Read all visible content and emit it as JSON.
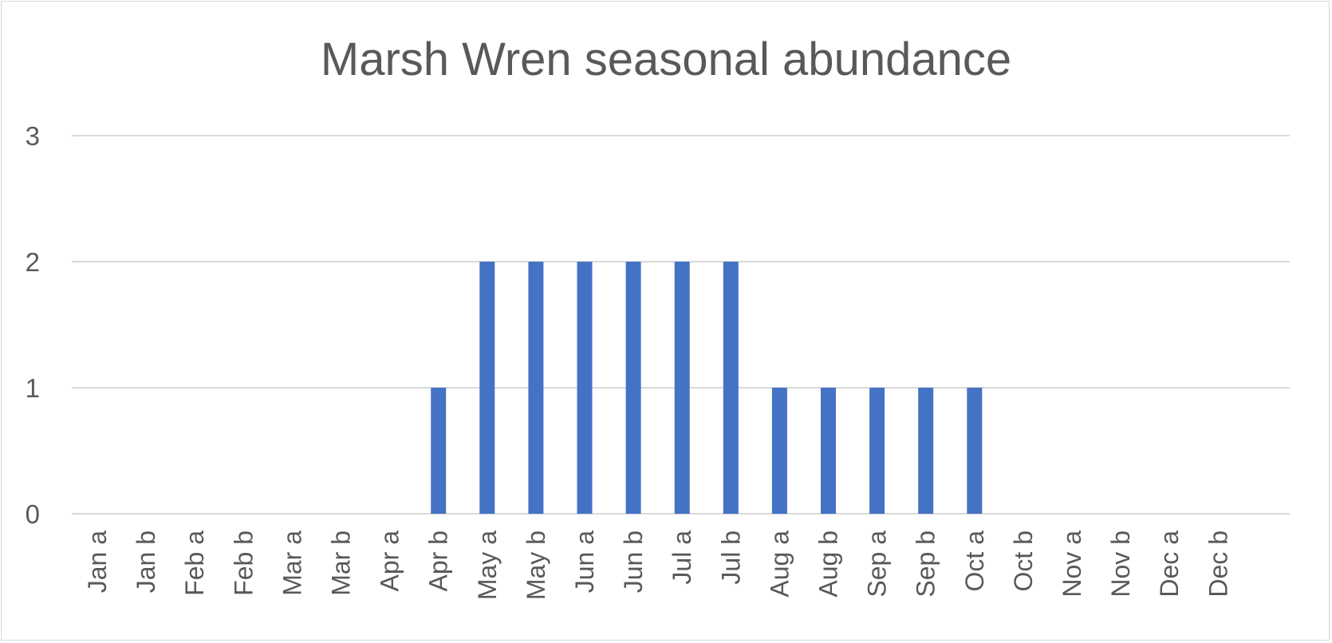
{
  "colors": {
    "bar": "#4472C4",
    "gridline": "#d9d9d9",
    "text": "#595959",
    "border": "#d9d9d9"
  },
  "chart_data": {
    "type": "bar",
    "title": "Marsh Wren seasonal abundance",
    "xlabel": "",
    "ylabel": "",
    "categories": [
      "Jan a",
      "Jan b",
      "Feb a",
      "Feb b",
      "Mar a",
      "Mar b",
      "Apr a",
      "Apr b",
      "May a",
      "May b",
      "Jun a",
      "Jun b",
      "Jul a",
      "Jul b",
      "Aug a",
      "Aug b",
      "Sep a",
      "Sep b",
      "Oct a",
      "Oct b",
      "Nov a",
      "Nov b",
      "Dec a",
      "Dec b"
    ],
    "values": [
      0,
      0,
      0,
      0,
      0,
      0,
      0,
      1,
      2,
      2,
      2,
      2,
      2,
      2,
      1,
      1,
      1,
      1,
      1,
      0,
      0,
      0,
      0,
      0
    ],
    "ylim": [
      0,
      3
    ],
    "yticks": [
      "0",
      "1",
      "2",
      "3"
    ],
    "grid": true,
    "legend": "none"
  }
}
